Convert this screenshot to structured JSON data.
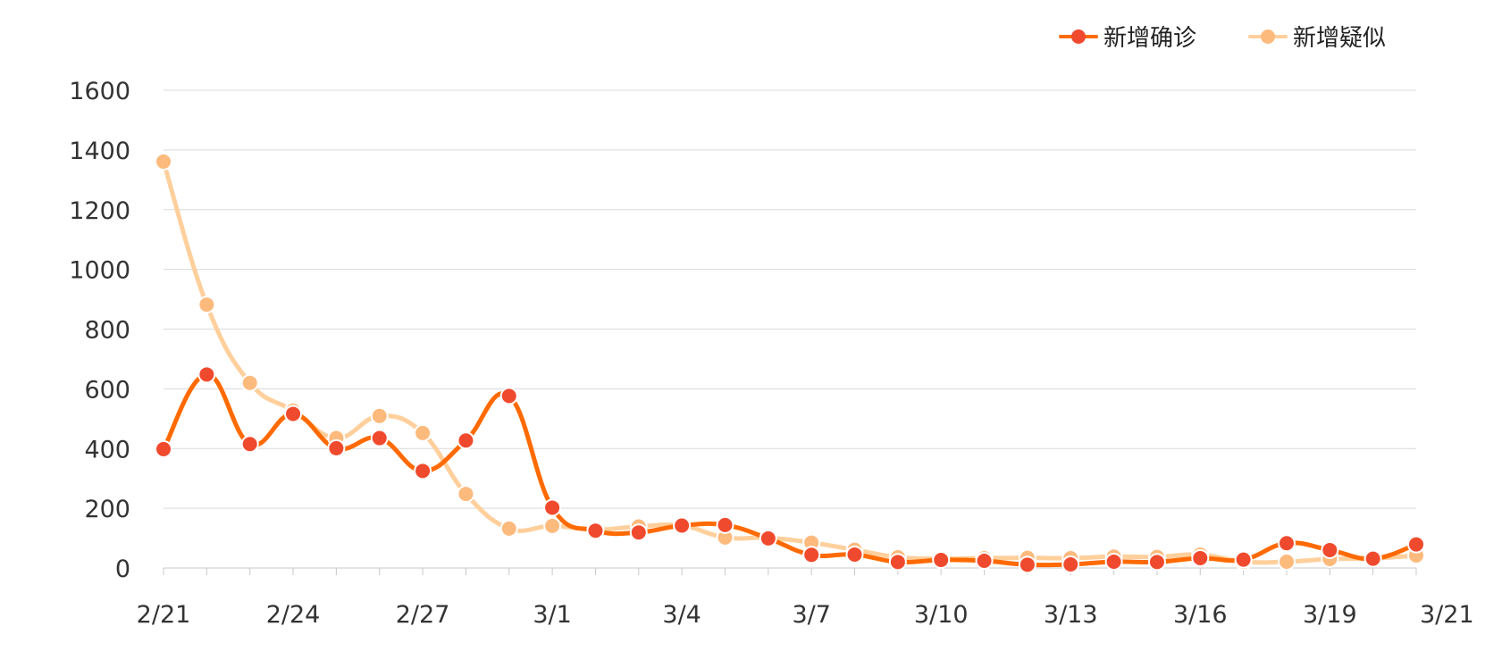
{
  "chart_data": {
    "type": "line",
    "x": [
      "2/21",
      "2/22",
      "2/23",
      "2/24",
      "2/25",
      "2/26",
      "2/27",
      "2/28",
      "2/29",
      "3/1",
      "3/2",
      "3/3",
      "3/4",
      "3/5",
      "3/6",
      "3/7",
      "3/8",
      "3/9",
      "3/10",
      "3/11",
      "3/12",
      "3/13",
      "3/14",
      "3/15",
      "3/16",
      "3/17",
      "3/18",
      "3/19",
      "3/20",
      "3/21"
    ],
    "tick_labels": [
      "2/21",
      "2/24",
      "2/27",
      "3/1",
      "3/4",
      "3/7",
      "3/10",
      "3/13",
      "3/16",
      "3/19",
      "3/21"
    ],
    "ylim": [
      0,
      1600
    ],
    "yticks": [
      0,
      200,
      400,
      600,
      800,
      1000,
      1200,
      1400,
      1600
    ],
    "grid": true,
    "legend": "top-right",
    "series": [
      {
        "name": "新增确诊",
        "color": "#ff6a00",
        "marker_color": "#f04a2e",
        "values": [
          398,
          648,
          415,
          516,
          401,
          435,
          325,
          427,
          576,
          202,
          125,
          119,
          142,
          144,
          99,
          44,
          45,
          20,
          27,
          24,
          11,
          12,
          21,
          20,
          33,
          28,
          83,
          60,
          31,
          79
        ]
      },
      {
        "name": "新增疑似",
        "color": "#ffcf9c",
        "marker_color": "#fdba7d",
        "values": [
          1361,
          882,
          620,
          527,
          435,
          509,
          452,
          248,
          132,
          141,
          128,
          139,
          142,
          102,
          101,
          85,
          61,
          36,
          31,
          33,
          34,
          33,
          38,
          37,
          45,
          21,
          21,
          30,
          32,
          42
        ]
      }
    ]
  }
}
